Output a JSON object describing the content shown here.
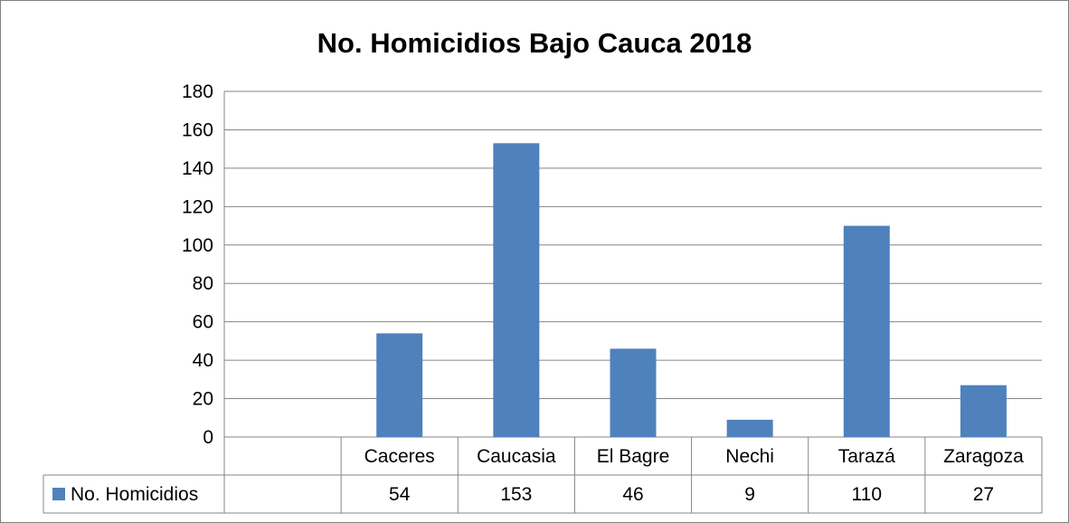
{
  "chart_data": {
    "type": "bar",
    "title": "No. Homicidios Bajo Cauca 2018",
    "categories": [
      "Caceres",
      "Caucasia",
      "El Bagre",
      "Nechi",
      "Tarazá",
      "Zaragoza"
    ],
    "series": [
      {
        "name": "No. Homicidios",
        "values": [
          54,
          153,
          46,
          9,
          110,
          27
        ],
        "color": "#4f81bd"
      }
    ],
    "ylim": [
      0,
      180
    ],
    "yticks": [
      0,
      20,
      40,
      60,
      80,
      100,
      120,
      140,
      160,
      180
    ],
    "grid": true,
    "legend": "data-table"
  }
}
